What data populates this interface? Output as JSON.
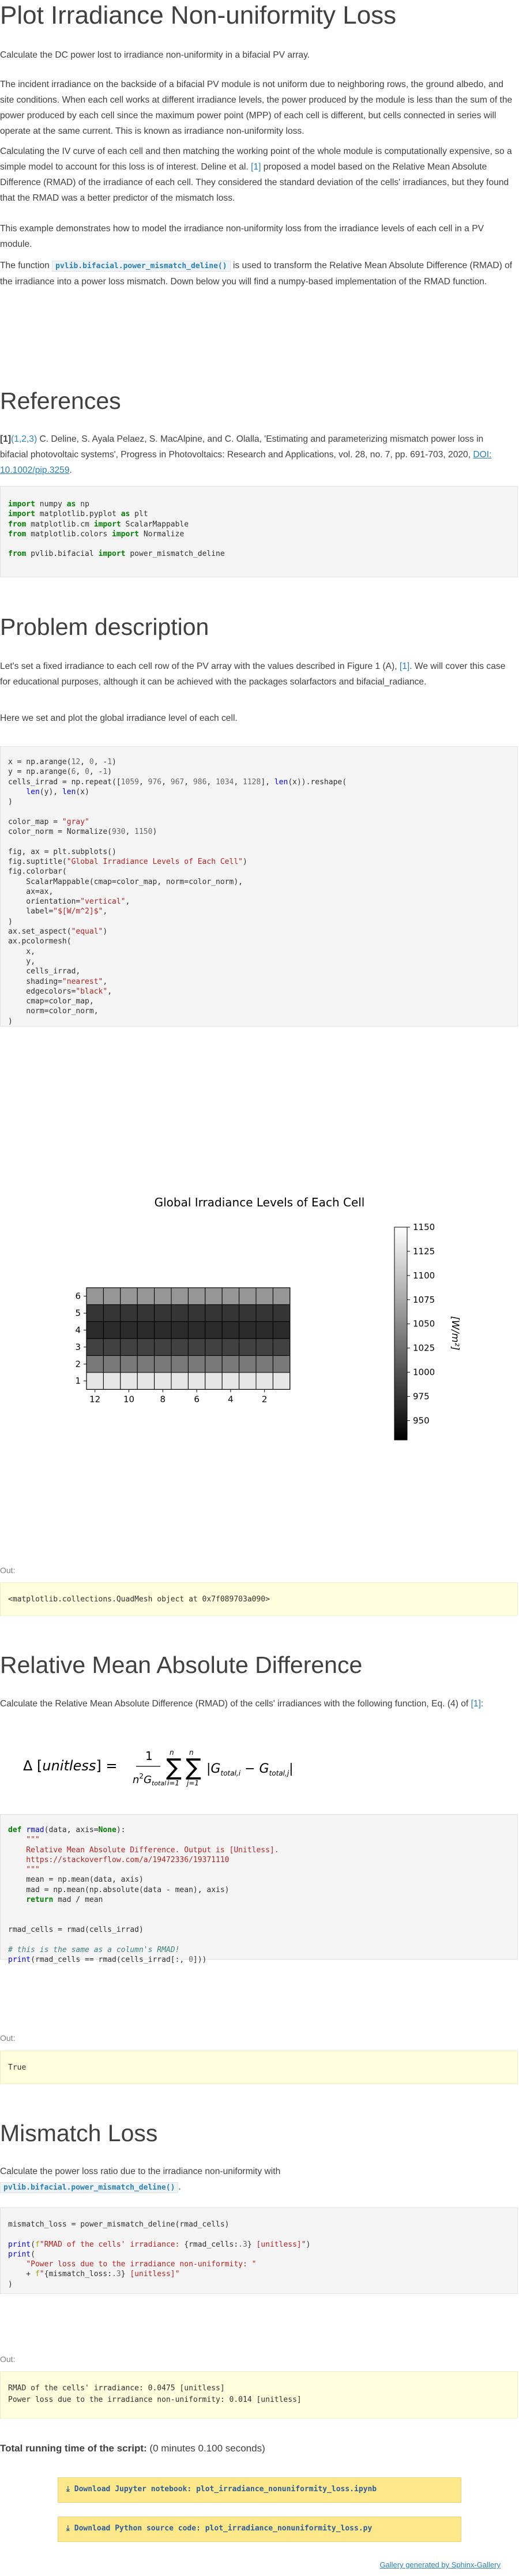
{
  "title": "Plot Irradiance Non-uniformity Loss",
  "intro": {
    "p1": "Calculate the DC power lost to irradiance non-uniformity in a bifacial PV array.",
    "p2": "The incident irradiance on the backside of a bifacial PV module is not uniform due to neighboring rows, the ground albedo, and site conditions. When each cell works at different irradiance levels, the power produced by the module is less than the sum of the power produced by each cell since the maximum power point (MPP) of each cell is different, but cells connected in series will operate at the same current. This is known as irradiance non-uniformity loss.",
    "p3a": "Calculating the IV curve of each cell and then matching the working point of the whole module is computationally expensive, so a simple model to account for this loss is of interest. Deline et al.",
    "p3ref": "[1]",
    "p3b": "proposed a model based on the Relative Mean Absolute Difference (RMAD) of the irradiance of each cell. They considered the standard deviation of the cells' irradiances, but they found that the RMAD was a better predictor of the mismatch loss.",
    "p4": "This example demonstrates how to model the irradiance non-uniformity loss from the irradiance levels of each cell in a PV module.",
    "p5a": "The function",
    "p5code": "pvlib.bifacial.power_mismatch_deline()",
    "p5b": "is used to transform the Relative Mean Absolute Difference (RMAD) of the irradiance into a power loss mismatch. Down below you will find a numpy-based implementation of the RMAD function."
  },
  "references": {
    "heading": "References",
    "label": "[1]",
    "backrefs": "(1,2,3)",
    "text": "C. Deline, S. Ayala Pelaez, S. MacAlpine, and C. Olalla, 'Estimating and parameterizing mismatch power loss in bifacial photovoltaic systems', Progress in Photovoltaics: Research and Applications, vol. 28, no. 7, pp. 691-703, 2020,",
    "doi": "DOI: 10.1002/pip.3259",
    "end": "."
  },
  "problem": {
    "heading": "Problem description",
    "p1a": "Let's set a fixed irradiance to each cell row of the PV array with the values described in Figure 1 (A),",
    "p1ref": "[1]",
    "p1b": ". We will cover this case for educational purposes, although it can be achieved with the packages solarfactors and bifacial_radiance.",
    "p2": "Here we set and plot the global irradiance level of each cell."
  },
  "chart_data": {
    "type": "heatmap",
    "title": "Global Irradiance Levels of Each Cell",
    "x_ticks": [
      "2",
      "4",
      "6",
      "8",
      "10",
      "12"
    ],
    "y_ticks": [
      "1",
      "2",
      "3",
      "4",
      "5",
      "6"
    ],
    "colorbar_ticks": [
      "950",
      "975",
      "1000",
      "1025",
      "1050",
      "1075",
      "1100",
      "1125",
      "1150"
    ],
    "colorbar_label": "[W/m²]",
    "colormap": "gray",
    "vmin": 930,
    "vmax": 1150,
    "row_values": [
      1059,
      976,
      967,
      986,
      1034,
      1128
    ],
    "columns": 12
  },
  "out1": {
    "label": "Out:",
    "text": "<matplotlib.collections.QuadMesh object at 0x7f089703a090>"
  },
  "rmad": {
    "heading": "Relative Mean Absolute Difference",
    "p1a": "Calculate the Relative Mean Absolute Difference (RMAD) of the cells' irradiances with the following function, Eq. (4) of",
    "p1ref": "[1]",
    "p1b": ":"
  },
  "out2": {
    "label": "Out:",
    "text": "True"
  },
  "mismatch": {
    "heading": "Mismatch Loss",
    "p1": "Calculate the power loss ratio due to the irradiance non-uniformity with",
    "p1code": "pvlib.bifacial.power_mismatch_deline()",
    "p1end": "."
  },
  "out3": {
    "label": "Out:",
    "line1": "RMAD of the cells' irradiance: 0.0475 [unitless]",
    "line2": "Power loss due to the irradiance non-uniformity: 0.014 [unitless]"
  },
  "footer": {
    "runtime_label": "Total running time of the script:",
    "runtime_value": "(0 minutes 0.100 seconds)",
    "download1": "Download Jupyter notebook: plot_irradiance_nonuniformity_loss.ipynb",
    "download2": "Download Python source code: plot_irradiance_nonuniformity_loss.py",
    "gallery": "Gallery generated by Sphinx-Gallery"
  }
}
